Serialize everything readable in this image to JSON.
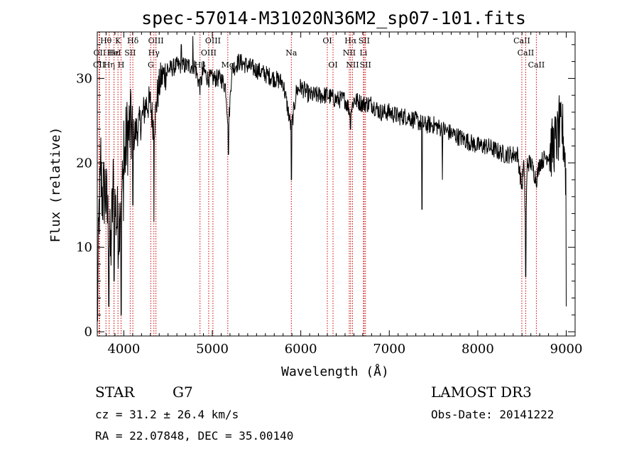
{
  "chart_data": {
    "type": "line",
    "title": "spec-57014-M31020N36M2_sp07-101.fits",
    "xlabel": "Wavelength (Å)",
    "ylabel": "Flux (relative)",
    "xlim": [
      3700,
      9100
    ],
    "ylim": [
      -0.5,
      35.5
    ],
    "xticks": [
      4000,
      5000,
      6000,
      7000,
      8000,
      9000
    ],
    "yticks": [
      0,
      10,
      20,
      30
    ],
    "series": [
      {
        "name": "flux",
        "anchors": [
          [
            3700,
            0.5
          ],
          [
            3720,
            14
          ],
          [
            3740,
            18
          ],
          [
            3760,
            16
          ],
          [
            3790,
            17
          ],
          [
            3820,
            13
          ],
          [
            3850,
            9
          ],
          [
            3880,
            17
          ],
          [
            3910,
            14
          ],
          [
            3940,
            12
          ],
          [
            3960,
            16
          ],
          [
            3990,
            17
          ],
          [
            4030,
            23
          ],
          [
            4070,
            24
          ],
          [
            4100,
            23
          ],
          [
            4150,
            24
          ],
          [
            4200,
            25
          ],
          [
            4250,
            27
          ],
          [
            4300,
            27
          ],
          [
            4340,
            24
          ],
          [
            4380,
            28
          ],
          [
            4420,
            30
          ],
          [
            4500,
            31
          ],
          [
            4600,
            31.5
          ],
          [
            4700,
            31.5
          ],
          [
            4800,
            31.5
          ],
          [
            4861,
            29
          ],
          [
            4900,
            31
          ],
          [
            4950,
            30
          ],
          [
            5000,
            30
          ],
          [
            5050,
            30
          ],
          [
            5100,
            30
          ],
          [
            5150,
            29
          ],
          [
            5183,
            24
          ],
          [
            5220,
            31
          ],
          [
            5300,
            32
          ],
          [
            5400,
            31.5
          ],
          [
            5500,
            31
          ],
          [
            5600,
            30.5
          ],
          [
            5700,
            30
          ],
          [
            5800,
            29.5
          ],
          [
            5893,
            24
          ],
          [
            5950,
            28.5
          ],
          [
            6000,
            29
          ],
          [
            6100,
            28
          ],
          [
            6200,
            28
          ],
          [
            6300,
            28
          ],
          [
            6400,
            27.5
          ],
          [
            6500,
            27.5
          ],
          [
            6563,
            26
          ],
          [
            6600,
            27.5
          ],
          [
            6700,
            27
          ],
          [
            6800,
            27
          ],
          [
            6900,
            26
          ],
          [
            7000,
            26
          ],
          [
            7100,
            25.5
          ],
          [
            7200,
            25.5
          ],
          [
            7300,
            25
          ],
          [
            7400,
            24.5
          ],
          [
            7500,
            24.5
          ],
          [
            7600,
            24
          ],
          [
            7700,
            23.5
          ],
          [
            7800,
            23
          ],
          [
            7900,
            22.5
          ],
          [
            8000,
            22
          ],
          [
            8100,
            22
          ],
          [
            8200,
            21.5
          ],
          [
            8300,
            21
          ],
          [
            8400,
            21
          ],
          [
            8450,
            21
          ],
          [
            8498,
            17
          ],
          [
            8520,
            20
          ],
          [
            8542,
            12
          ],
          [
            8560,
            20
          ],
          [
            8600,
            20
          ],
          [
            8662,
            18
          ],
          [
            8700,
            20
          ],
          [
            8800,
            21
          ],
          [
            8900,
            23
          ],
          [
            8950,
            24
          ],
          [
            8980,
            22
          ],
          [
            9000,
            17
          ]
        ],
        "dips": [
          [
            3830,
            3
          ],
          [
            3890,
            6
          ],
          [
            3970,
            2
          ],
          [
            4102,
            15
          ],
          [
            4340,
            13
          ],
          [
            5183,
            21
          ],
          [
            5893,
            18
          ],
          [
            6563,
            24
          ],
          [
            7370,
            14.5
          ],
          [
            7600,
            18
          ],
          [
            8542,
            6.5
          ],
          [
            9000,
            3
          ]
        ],
        "spikes": [
          [
            3740,
            23
          ],
          [
            4000,
            25
          ],
          [
            4080,
            28
          ],
          [
            4650,
            34
          ],
          [
            4780,
            35
          ],
          [
            8920,
            28
          ],
          [
            8960,
            27
          ]
        ]
      }
    ],
    "lines": [
      {
        "label": "Hθ",
        "x": 3798,
        "row": 1
      },
      {
        "label": "OII",
        "x": 3727,
        "row": 2
      },
      {
        "label": "CII",
        "x": 3720,
        "row": 3
      },
      {
        "label": "Hε",
        "x": 3889,
        "row": 2
      },
      {
        "label": "Hη",
        "x": 3835,
        "row": 3
      },
      {
        "label": "K",
        "x": 3934,
        "row": 1
      },
      {
        "label": "HeI",
        "x": 3889,
        "row": 2
      },
      {
        "label": "H",
        "x": 3969,
        "row": 3
      },
      {
        "label": "SII",
        "x": 4072,
        "row": 2
      },
      {
        "label": "Hδ",
        "x": 4102,
        "row": 1
      },
      {
        "label": "OIII",
        "x": 4363,
        "row": 1
      },
      {
        "label": "Hγ",
        "x": 4340,
        "row": 2
      },
      {
        "label": "G",
        "x": 4305,
        "row": 3
      },
      {
        "label": "Hβ",
        "x": 4861,
        "row": 3
      },
      {
        "label": "OIII",
        "x": 5007,
        "row": 1
      },
      {
        "label": "OIII",
        "x": 4959,
        "row": 2
      },
      {
        "label": "Mg",
        "x": 5175,
        "row": 3
      },
      {
        "label": "Na",
        "x": 5893,
        "row": 2
      },
      {
        "label": "OI",
        "x": 6300,
        "row": 1
      },
      {
        "label": "OI",
        "x": 6364,
        "row": 3
      },
      {
        "label": "Hα",
        "x": 6563,
        "row": 1
      },
      {
        "label": "NII",
        "x": 6548,
        "row": 2
      },
      {
        "label": "NII",
        "x": 6584,
        "row": 3
      },
      {
        "label": "SII",
        "x": 6716,
        "row": 1
      },
      {
        "label": "Li",
        "x": 6708,
        "row": 2
      },
      {
        "label": "SII",
        "x": 6731,
        "row": 3
      },
      {
        "label": "CaII",
        "x": 8498,
        "row": 1
      },
      {
        "label": "CaII",
        "x": 8542,
        "row": 2
      },
      {
        "label": "CaII",
        "x": 8662,
        "row": 3
      }
    ]
  },
  "info": {
    "object_class": "STAR",
    "subclass": "G7",
    "survey": "LAMOST DR3",
    "cz": "cz = 31.2 ± 26.4 km/s",
    "obs_date": "Obs-Date: 20141222",
    "radec": "RA =  22.07848, DEC =  35.00140"
  },
  "colors": {
    "line_marker": "#cc0000",
    "spectrum": "#000000"
  }
}
